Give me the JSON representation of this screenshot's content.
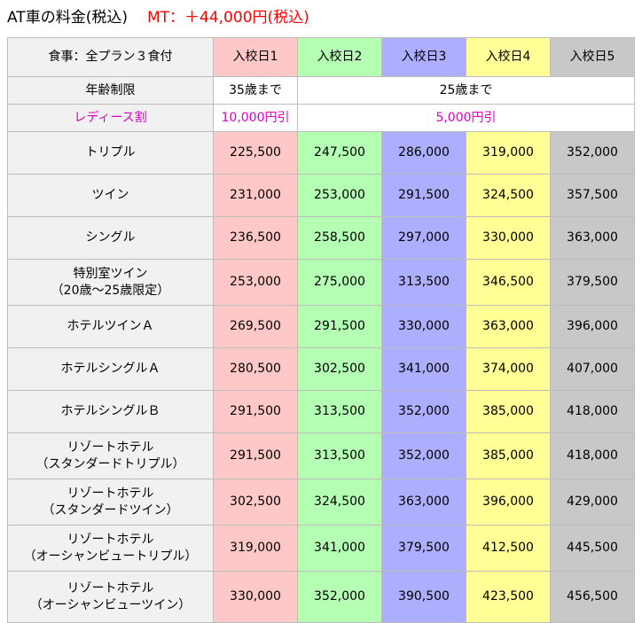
{
  "title": "AT車の料金(税込)",
  "mt_note": "MT：＋44,000円(税込)",
  "header": {
    "label": "食事：全プラン３食付",
    "days": [
      "入校日1",
      "入校日2",
      "入校日3",
      "入校日4",
      "入校日5"
    ]
  },
  "age_row": {
    "label": "年齢制限",
    "day1": "35歳まで",
    "rest": "25歳まで"
  },
  "ladies_row": {
    "label": "レディース割",
    "day1": "10,000円引",
    "rest": "5,000円引"
  },
  "colors": {
    "day1": "#ffc8c8",
    "day2": "#b4ffb4",
    "day3": "#aeaeff",
    "day4": "#ffff96",
    "day5": "#c8c8c8",
    "accent": "#ff0000",
    "pink": "#e000c8"
  },
  "plans": [
    {
      "name": "トリプル",
      "sub": "",
      "prices": [
        "225,500",
        "247,500",
        "286,000",
        "319,000",
        "352,000"
      ]
    },
    {
      "name": "ツイン",
      "sub": "",
      "prices": [
        "231,000",
        "253,000",
        "291,500",
        "324,500",
        "357,500"
      ]
    },
    {
      "name": "シングル",
      "sub": "",
      "prices": [
        "236,500",
        "258,500",
        "297,000",
        "330,000",
        "363,000"
      ]
    },
    {
      "name": "特別室ツイン",
      "sub": "（20歳～25歳限定）",
      "prices": [
        "253,000",
        "275,000",
        "313,500",
        "346,500",
        "379,500"
      ]
    },
    {
      "name": "ホテルツインＡ",
      "sub": "",
      "prices": [
        "269,500",
        "291,500",
        "330,000",
        "363,000",
        "396,000"
      ]
    },
    {
      "name": "ホテルシングルＡ",
      "sub": "",
      "prices": [
        "280,500",
        "302,500",
        "341,000",
        "374,000",
        "407,000"
      ]
    },
    {
      "name": "ホテルシングルＢ",
      "sub": "",
      "prices": [
        "291,500",
        "313,500",
        "352,000",
        "385,000",
        "418,000"
      ]
    },
    {
      "name": "リゾートホテル",
      "sub": "（スタンダードトリプル）",
      "prices": [
        "291,500",
        "313,500",
        "352,000",
        "385,000",
        "418,000"
      ]
    },
    {
      "name": "リゾートホテル",
      "sub": "（スタンダードツイン）",
      "prices": [
        "302,500",
        "324,500",
        "363,000",
        "396,000",
        "429,000"
      ]
    },
    {
      "name": "リゾートホテル",
      "sub": "（オーシャンビュートリプル）",
      "prices": [
        "319,000",
        "341,000",
        "379,500",
        "412,500",
        "445,500"
      ]
    },
    {
      "name": "リゾートホテル",
      "sub": "（オーシャンビューツイン）",
      "prices": [
        "330,000",
        "352,000",
        "390,500",
        "423,500",
        "456,500"
      ]
    }
  ]
}
